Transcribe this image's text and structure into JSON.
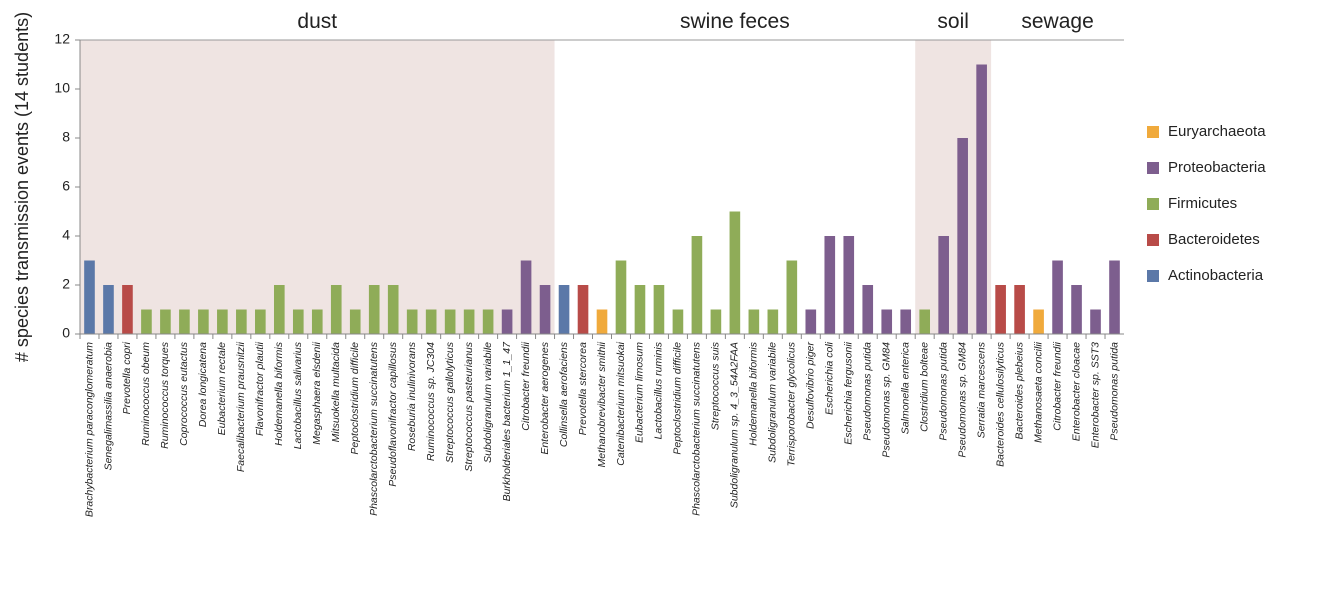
{
  "chart_data": {
    "type": "bar",
    "y_label": "# species transmission events (14 students)",
    "categories": [
      "Brachybacterium paraconglomeratum",
      "Senegalimassilia anaerobia",
      "Prevotella copri",
      "Ruminococcus obeum",
      "Ruminococcus torques",
      "Coprococcus eutactus",
      "Dorea longicatena",
      "Eubacterium rectale",
      "Faecalibacterium prausnitzii",
      "Flavonifractor plautii",
      "Holdemanella biformis",
      "Lactobacillus salivarius",
      "Megasphaera elsdenii",
      "Mitsuokella multacida",
      "Peptoclostridium difficile",
      "Phascolarctobacterium succinatutens",
      "Pseudoflavonifractor capillosus",
      "Roseburia inulinivorans",
      "Ruminococcus sp. JC304",
      "Streptococcus gallolyticus",
      "Streptococcus pasteurianus",
      "Subdoligranulum variabile",
      "Burkholderiales bacterium 1_1_47",
      "Citrobacter freundii",
      "Enterobacter aerogenes",
      "Collinsella aerofaciens",
      "Prevotella stercorea",
      "Methanobrevibacter smithii",
      "Catenibacterium mitsuokai",
      "Eubacterium limosum",
      "Lactobacillus ruminis",
      "Peptoclostridium difficile",
      "Phascolarctobacterium succinatutens",
      "Streptococcus suis",
      "Subdoligranulum sp. 4_3_54A2FAA",
      "Holdemanella biformis",
      "Subdoligranulum variabile",
      "Terrisporobacter glycolicus",
      "Desulfovibrio piger",
      "Escherichia coli",
      "Escherichia fergusonii",
      "Pseudomonas putida",
      "Pseudomonas sp. GM84",
      "Salmonella enterica",
      "Clostridium bolteae",
      "Pseudomonas putida",
      "Pseudomonas sp. GM84",
      "Serratia marcescens",
      "Bacteroides cellulosilyticus",
      "Bacteroides plebeius",
      "Methanosaeta concilii",
      "Citrobacter freundii",
      "Enterobacter cloacae",
      "Enterobacter sp. SST3",
      "Pseudomonas putida"
    ],
    "series": [
      {
        "name": "Euryarchaeota",
        "color": "#f0aa3c",
        "values": [
          null,
          null,
          null,
          null,
          null,
          null,
          null,
          null,
          null,
          null,
          null,
          null,
          null,
          null,
          null,
          null,
          null,
          null,
          null,
          null,
          null,
          null,
          null,
          null,
          null,
          null,
          null,
          1,
          null,
          null,
          null,
          null,
          null,
          null,
          null,
          null,
          null,
          null,
          null,
          null,
          null,
          null,
          null,
          null,
          null,
          null,
          null,
          null,
          null,
          null,
          1,
          null,
          null,
          null,
          null
        ]
      },
      {
        "name": "Proteobacteria",
        "color": "#7d5e8e",
        "values": [
          null,
          null,
          null,
          null,
          null,
          null,
          null,
          null,
          null,
          null,
          null,
          null,
          null,
          null,
          null,
          null,
          null,
          null,
          null,
          null,
          null,
          null,
          1,
          3,
          2,
          null,
          null,
          null,
          null,
          null,
          null,
          null,
          null,
          null,
          null,
          null,
          null,
          null,
          1,
          4,
          4,
          2,
          1,
          1,
          null,
          4,
          8,
          11,
          null,
          null,
          null,
          3,
          2,
          1,
          3
        ]
      },
      {
        "name": "Firmicutes",
        "color": "#8fac58",
        "values": [
          null,
          null,
          null,
          1,
          1,
          1,
          1,
          1,
          1,
          1,
          2,
          1,
          1,
          2,
          1,
          2,
          2,
          1,
          1,
          1,
          1,
          1,
          null,
          null,
          null,
          null,
          null,
          null,
          3,
          2,
          2,
          1,
          4,
          1,
          5,
          1,
          1,
          3,
          null,
          null,
          null,
          null,
          null,
          null,
          1,
          null,
          null,
          null,
          null,
          null,
          null,
          null,
          null,
          null,
          null
        ]
      },
      {
        "name": "Bacteroidetes",
        "color": "#b84b48",
        "values": [
          null,
          null,
          2,
          null,
          null,
          null,
          null,
          null,
          null,
          null,
          null,
          null,
          null,
          null,
          null,
          null,
          null,
          null,
          null,
          null,
          null,
          null,
          null,
          null,
          null,
          null,
          2,
          null,
          null,
          null,
          null,
          null,
          null,
          null,
          null,
          null,
          null,
          null,
          null,
          null,
          null,
          null,
          null,
          null,
          null,
          null,
          null,
          null,
          2,
          2,
          null,
          null,
          null,
          null,
          null
        ]
      },
      {
        "name": "Actinobacteria",
        "color": "#5b78a8",
        "values": [
          3,
          2,
          null,
          null,
          null,
          null,
          null,
          null,
          null,
          null,
          null,
          null,
          null,
          null,
          null,
          null,
          null,
          null,
          null,
          null,
          null,
          null,
          null,
          null,
          null,
          2,
          null,
          null,
          null,
          null,
          null,
          null,
          null,
          null,
          null,
          null,
          null,
          null,
          null,
          null,
          null,
          null,
          null,
          null,
          null,
          null,
          null,
          null,
          null,
          null,
          null,
          null,
          null,
          null,
          null
        ]
      }
    ],
    "sections": [
      {
        "label": "dust",
        "first": 0,
        "last": 24,
        "shaded": true
      },
      {
        "label": "swine feces",
        "first": 25,
        "last": 43,
        "shaded": false
      },
      {
        "label": "soil",
        "first": 44,
        "last": 47,
        "shaded": true
      },
      {
        "label": "sewage",
        "first": 48,
        "last": 54,
        "shaded": false
      }
    ],
    "shade_color": "#efe4e2",
    "ylim": [
      0,
      12
    ],
    "yticks": [
      0,
      2,
      4,
      6,
      8,
      10,
      12
    ],
    "grid": false,
    "legend": "right"
  }
}
